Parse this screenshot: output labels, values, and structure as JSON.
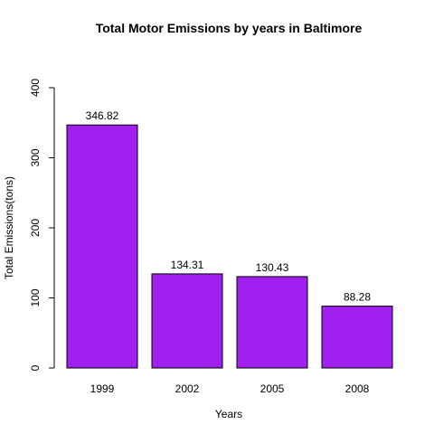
{
  "chart_data": {
    "type": "bar",
    "title": "Total Motor Emissions by years in Baltimore",
    "xlabel": "Years",
    "ylabel": "Total Emissions(tons)",
    "categories": [
      "1999",
      "2002",
      "2005",
      "2008"
    ],
    "values": [
      346.82,
      134.31,
      130.43,
      88.28
    ],
    "data_labels": [
      "346.82",
      "134.31",
      "130.43",
      "88.28"
    ],
    "ylim": [
      0,
      400
    ],
    "yticks": [
      0,
      100,
      200,
      300,
      400
    ],
    "ytick_labels": [
      "0",
      "100",
      "200",
      "300",
      "400"
    ],
    "grid": false,
    "legend": "none",
    "bar_color": "#A020F0",
    "bar_outline": "#000000"
  }
}
